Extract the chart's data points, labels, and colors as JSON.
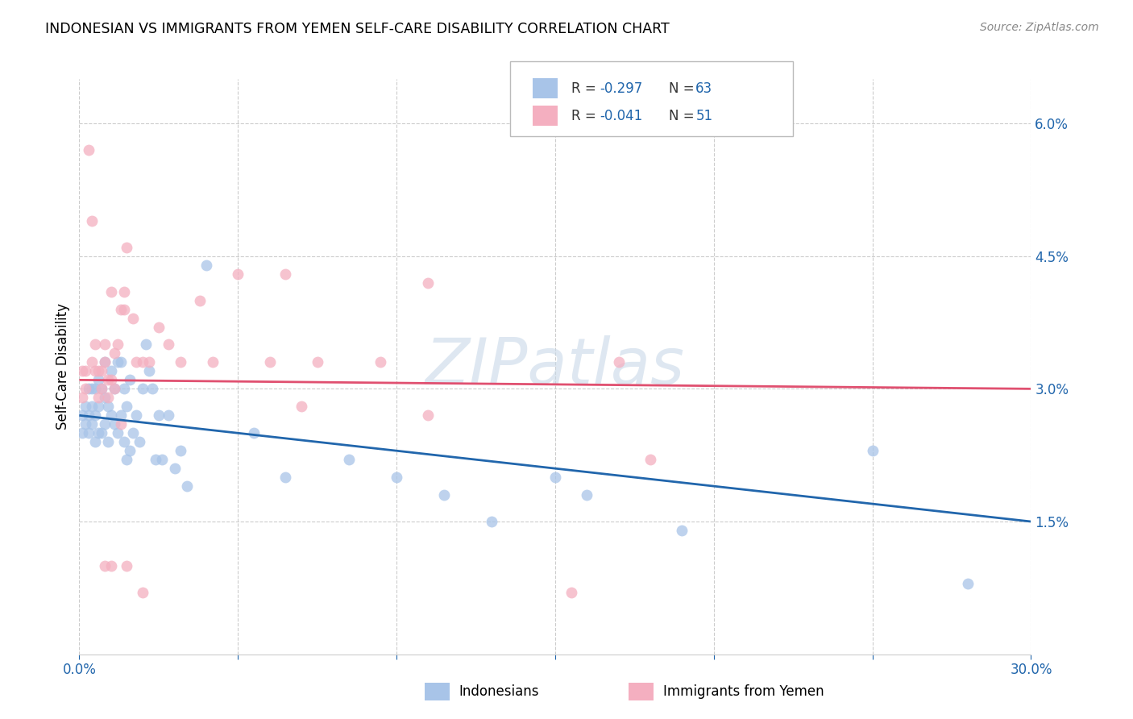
{
  "title": "INDONESIAN VS IMMIGRANTS FROM YEMEN SELF-CARE DISABILITY CORRELATION CHART",
  "source": "Source: ZipAtlas.com",
  "ylabel": "Self-Care Disability",
  "xlim": [
    0.0,
    0.3
  ],
  "ylim": [
    0.0,
    0.065
  ],
  "xtick_positions": [
    0.0,
    0.05,
    0.1,
    0.15,
    0.2,
    0.25,
    0.3
  ],
  "xticklabels": [
    "0.0%",
    "",
    "",
    "",
    "",
    "",
    "30.0%"
  ],
  "yticks_right": [
    0.015,
    0.03,
    0.045,
    0.06
  ],
  "yticklabels_right": [
    "1.5%",
    "3.0%",
    "4.5%",
    "6.0%"
  ],
  "color_blue": "#a8c4e8",
  "color_pink": "#f4afc0",
  "color_line_blue": "#2166ac",
  "color_line_pink": "#e05070",
  "color_text_blue": "#2166ac",
  "color_axis": "#2166ac",
  "color_grid": "#cccccc",
  "blue_x": [
    0.001,
    0.001,
    0.002,
    0.002,
    0.003,
    0.003,
    0.003,
    0.004,
    0.004,
    0.004,
    0.005,
    0.005,
    0.005,
    0.006,
    0.006,
    0.006,
    0.007,
    0.007,
    0.008,
    0.008,
    0.008,
    0.009,
    0.009,
    0.01,
    0.01,
    0.011,
    0.011,
    0.012,
    0.012,
    0.013,
    0.013,
    0.014,
    0.014,
    0.015,
    0.015,
    0.016,
    0.016,
    0.017,
    0.018,
    0.019,
    0.02,
    0.021,
    0.022,
    0.023,
    0.024,
    0.025,
    0.026,
    0.028,
    0.03,
    0.032,
    0.034,
    0.04,
    0.055,
    0.065,
    0.085,
    0.1,
    0.115,
    0.13,
    0.15,
    0.16,
    0.19,
    0.25,
    0.28
  ],
  "blue_y": [
    0.025,
    0.027,
    0.026,
    0.028,
    0.025,
    0.027,
    0.03,
    0.026,
    0.028,
    0.03,
    0.024,
    0.027,
    0.03,
    0.025,
    0.028,
    0.031,
    0.025,
    0.03,
    0.026,
    0.029,
    0.033,
    0.024,
    0.028,
    0.027,
    0.032,
    0.026,
    0.03,
    0.025,
    0.033,
    0.027,
    0.033,
    0.024,
    0.03,
    0.022,
    0.028,
    0.031,
    0.023,
    0.025,
    0.027,
    0.024,
    0.03,
    0.035,
    0.032,
    0.03,
    0.022,
    0.027,
    0.022,
    0.027,
    0.021,
    0.023,
    0.019,
    0.044,
    0.025,
    0.02,
    0.022,
    0.02,
    0.018,
    0.015,
    0.02,
    0.018,
    0.014,
    0.023,
    0.008
  ],
  "pink_x": [
    0.001,
    0.001,
    0.002,
    0.002,
    0.003,
    0.004,
    0.004,
    0.005,
    0.005,
    0.006,
    0.006,
    0.007,
    0.007,
    0.008,
    0.008,
    0.009,
    0.009,
    0.01,
    0.01,
    0.011,
    0.011,
    0.012,
    0.013,
    0.014,
    0.014,
    0.015,
    0.017,
    0.018,
    0.02,
    0.022,
    0.025,
    0.028,
    0.032,
    0.038,
    0.042,
    0.05,
    0.06,
    0.07,
    0.075,
    0.095,
    0.11,
    0.155,
    0.17,
    0.01,
    0.015,
    0.065,
    0.18,
    0.11,
    0.02,
    0.013,
    0.008
  ],
  "pink_y": [
    0.029,
    0.032,
    0.03,
    0.032,
    0.057,
    0.049,
    0.033,
    0.032,
    0.035,
    0.029,
    0.032,
    0.032,
    0.03,
    0.035,
    0.033,
    0.031,
    0.029,
    0.041,
    0.031,
    0.034,
    0.03,
    0.035,
    0.039,
    0.039,
    0.041,
    0.046,
    0.038,
    0.033,
    0.033,
    0.033,
    0.037,
    0.035,
    0.033,
    0.04,
    0.033,
    0.043,
    0.033,
    0.028,
    0.033,
    0.033,
    0.042,
    0.007,
    0.033,
    0.01,
    0.01,
    0.043,
    0.022,
    0.027,
    0.007,
    0.026,
    0.01
  ],
  "blue_line_x": [
    0.0,
    0.3
  ],
  "blue_line_y": [
    0.027,
    0.015
  ],
  "pink_line_x": [
    0.0,
    0.3
  ],
  "pink_line_y": [
    0.031,
    0.03
  ],
  "watermark_text": "ZIPatlas",
  "watermark_color": "#c8d8e8",
  "watermark_alpha": 0.6
}
